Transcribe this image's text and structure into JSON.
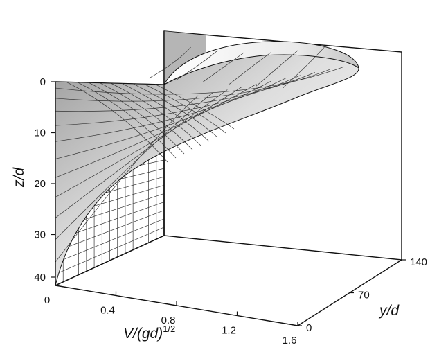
{
  "chart_data": {
    "type": "surface3d",
    "title": "",
    "axes": {
      "x": {
        "label_prefix": "V/(gd)",
        "label_superscript": "1/2",
        "range": [
          0,
          1.6
        ],
        "ticks": [
          "0",
          "0.4",
          "0.8",
          "1.2",
          "1.6"
        ]
      },
      "y": {
        "label": "y/d",
        "range": [
          0,
          140
        ],
        "ticks": [
          "0",
          "70",
          "140"
        ]
      },
      "z": {
        "label": "z/d",
        "range": [
          0,
          40
        ],
        "reversed": true,
        "ticks": [
          "0",
          "10",
          "20",
          "30",
          "40"
        ]
      }
    },
    "surface": {
      "description_values": {
        "max_velocity_at_surface": 1.6,
        "velocity_profile": "logarithmic-like, decaying with depth; elliptical in y",
        "y_extent": [
          0,
          140
        ],
        "z_extent": [
          0,
          40
        ]
      },
      "shading_colors": [
        "#ffffff",
        "#dedede",
        "#9a9a9a"
      ]
    },
    "grid": true
  }
}
